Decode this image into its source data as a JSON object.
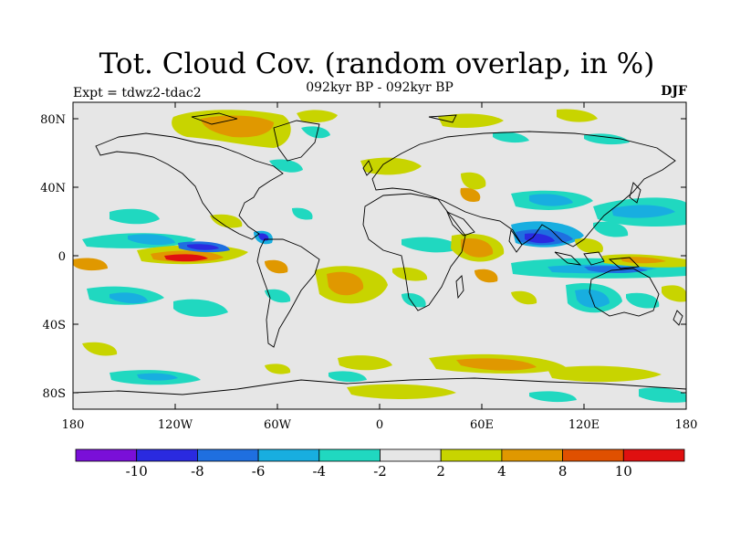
{
  "header": {
    "title": "Tot. Cloud Cov. (random overlap, in %)",
    "subtitle": "092kyr BP - 092kyr BP",
    "experiment": "Expt = tdwz2-tdac2",
    "season": "DJF"
  },
  "axes": {
    "x_ticks": [
      "180",
      "120W",
      "60W",
      "0",
      "60E",
      "120E",
      "180"
    ],
    "y_ticks": [
      "80N",
      "40N",
      "0",
      "40S",
      "80S"
    ]
  },
  "colorbar": {
    "colors": [
      "#7a0fd8",
      "#2a2ae0",
      "#1f6fe0",
      "#18aee0",
      "#20d8c0",
      "#e6e6e6",
      "#c8d400",
      "#e09800",
      "#e05000",
      "#e01010"
    ],
    "labels": [
      "-10",
      "-8",
      "-6",
      "-4",
      "-2",
      "2",
      "4",
      "8",
      "10"
    ]
  }
}
